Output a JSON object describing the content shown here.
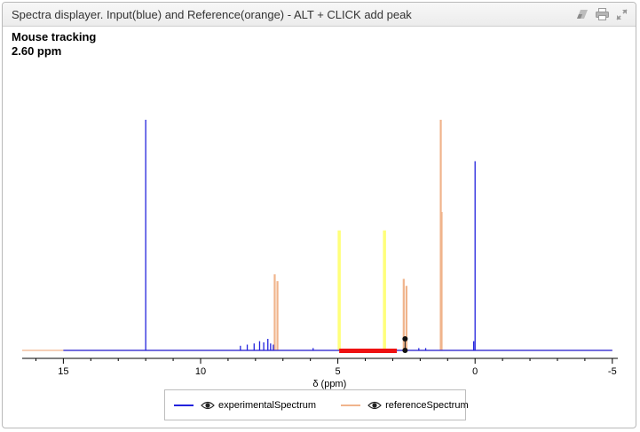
{
  "window": {
    "title": "Spectra displayer. Input(blue) and Reference(orange) - ALT + CLICK add peak",
    "icons": [
      "eraser-icon",
      "print-icon",
      "expand-icon"
    ]
  },
  "tracking": {
    "label": "Mouse tracking",
    "value": "2.60 ppm"
  },
  "colors": {
    "experimental": "#2222dd",
    "reference": "#f0b48c",
    "highlight_yellow": "#ffff7a",
    "region_red": "#ee1111",
    "marker": "#111111"
  },
  "chart_data": {
    "type": "line",
    "xlabel": "δ (ppm)",
    "ylabel": "",
    "xlim": [
      16.5,
      -5.2
    ],
    "x_reversed": true,
    "x_ticks": [
      "15",
      "10",
      "5",
      "0",
      "-5"
    ],
    "grid": false,
    "legend_position": "bottom-center",
    "series": [
      {
        "name": "experimentalSpectrum",
        "color": "#2222dd",
        "baseline_range": [
          15.0,
          -5.0
        ],
        "peaks": [
          {
            "x": 12.0,
            "h": 1.0
          },
          {
            "x": 0.0,
            "h": 0.82
          },
          {
            "x": 8.55,
            "h": 0.02
          },
          {
            "x": 8.3,
            "h": 0.025
          },
          {
            "x": 8.05,
            "h": 0.03
          },
          {
            "x": 7.85,
            "h": 0.04
          },
          {
            "x": 7.7,
            "h": 0.035
          },
          {
            "x": 7.55,
            "h": 0.05
          },
          {
            "x": 7.45,
            "h": 0.03
          },
          {
            "x": 7.35,
            "h": 0.025
          },
          {
            "x": 5.9,
            "h": 0.01
          },
          {
            "x": 2.05,
            "h": 0.01
          },
          {
            "x": 1.8,
            "h": 0.01
          },
          {
            "x": 0.05,
            "h": 0.04
          }
        ]
      },
      {
        "name": "referenceSpectrum",
        "color": "#f0b48c",
        "baseline_range": [
          16.5,
          -5.0
        ],
        "peaks": [
          {
            "x": 7.3,
            "h": 0.33
          },
          {
            "x": 7.2,
            "h": 0.3
          },
          {
            "x": 2.6,
            "h": 0.31
          },
          {
            "x": 2.5,
            "h": 0.28
          },
          {
            "x": 1.25,
            "h": 1.0
          },
          {
            "x": 1.22,
            "h": 0.6
          }
        ]
      }
    ],
    "annotations": {
      "yellow_lines": [
        4.95,
        3.3
      ],
      "red_region": [
        4.95,
        2.85
      ],
      "markers": [
        {
          "x": 2.55,
          "h": 0.05
        },
        {
          "x": 2.55,
          "h": 0.0
        }
      ]
    }
  }
}
